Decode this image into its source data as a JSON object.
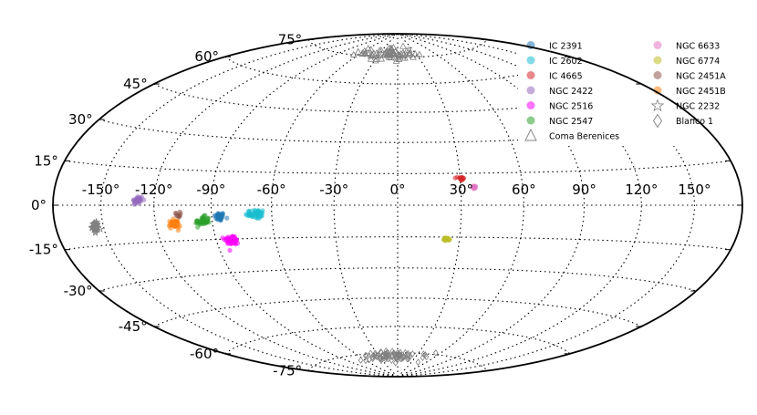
{
  "chart_data": {
    "type": "scatter",
    "projection": "hammer-aitoff",
    "grid": true,
    "legend_position": "top-right",
    "x_ticks": [
      "-150°",
      "-120°",
      "-90°",
      "-60°",
      "-30°",
      "0°",
      "30°",
      "60°",
      "90°",
      "120°",
      "150°"
    ],
    "x_tick_values": [
      -150,
      -120,
      -90,
      -60,
      -30,
      0,
      30,
      60,
      90,
      120,
      150
    ],
    "y_ticks": [
      "75°",
      "60°",
      "45°",
      "30°",
      "15°",
      "0°",
      "-15°",
      "-30°",
      "-45°",
      "-60°",
      "-75°"
    ],
    "y_tick_values": [
      75,
      60,
      45,
      30,
      15,
      0,
      -15,
      -30,
      -45,
      -60,
      -75
    ],
    "series": [
      {
        "name": "IC 2391",
        "color": "#1f77b4",
        "marker": "circle",
        "center": [
          -86,
          -5
        ],
        "spread": [
          2.2,
          1.6
        ],
        "count": 40
      },
      {
        "name": "IC 2602",
        "color": "#17becf",
        "marker": "circle",
        "center": [
          -68,
          -4
        ],
        "spread": [
          4,
          1.8
        ],
        "count": 45
      },
      {
        "name": "IC 4665",
        "color": "#d62728",
        "marker": "circle",
        "center": [
          30.5,
          12.5
        ],
        "spread": [
          1.2,
          1
        ],
        "count": 22
      },
      {
        "name": "NGC 2422",
        "color": "#9467bd",
        "marker": "circle",
        "center": [
          -129,
          2
        ],
        "spread": [
          2.5,
          1.6
        ],
        "count": 28
      },
      {
        "name": "NGC 2516",
        "color": "#ff00ff",
        "marker": "circle",
        "center": [
          -82,
          -15.5
        ],
        "spread": [
          3,
          1.8
        ],
        "count": 55
      },
      {
        "name": "NGC 2547",
        "color": "#2ca02c",
        "marker": "circle",
        "center": [
          -95,
          -7
        ],
        "spread": [
          3.2,
          1.8
        ],
        "count": 45
      },
      {
        "name": "Coma Berenices",
        "color": "#808080",
        "marker": "triangle",
        "center": [
          -15,
          77
        ],
        "spread": [
          35,
          3.5
        ],
        "count": 70
      },
      {
        "name": "NGC 6633",
        "color": "#e377c2",
        "marker": "circle",
        "center": [
          36.5,
          8.5
        ],
        "spread": [
          0.9,
          0.6
        ],
        "count": 20
      },
      {
        "name": "NGC 6774",
        "color": "#bcbd22",
        "marker": "circle",
        "center": [
          24,
          -16
        ],
        "spread": [
          1.3,
          0.6
        ],
        "count": 22
      },
      {
        "name": "NGC 2451A",
        "color": "#8c564b",
        "marker": "circle",
        "center": [
          -108,
          -4
        ],
        "spread": [
          1.5,
          1
        ],
        "count": 10
      },
      {
        "name": "NGC 2451B",
        "color": "#ff7f0e",
        "marker": "circle",
        "center": [
          -110,
          -8
        ],
        "spread": [
          2.5,
          1.5
        ],
        "count": 45
      },
      {
        "name": "NGC 2232",
        "color": "#808080",
        "marker": "star",
        "center": [
          -155,
          -8
        ],
        "spread": [
          1.6,
          1.4
        ],
        "count": 40
      },
      {
        "name": "Blanco 1",
        "color": "#808080",
        "marker": "diamond",
        "center": [
          -5,
          -77
        ],
        "spread": [
          45,
          2.5
        ],
        "count": 80
      }
    ]
  }
}
